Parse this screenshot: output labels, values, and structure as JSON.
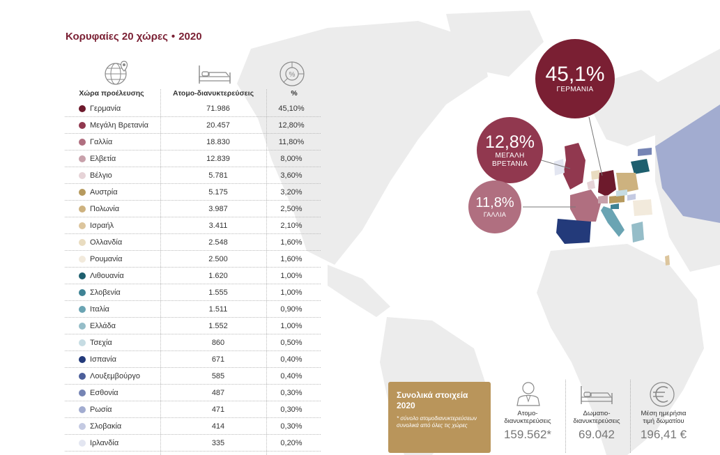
{
  "title": "Κορυφαίες 20 χώρες",
  "year": "2020",
  "separator": "•",
  "columns": {
    "country": "Χώρα προέλευσης",
    "value": "Ατομο-διανυκτερεύσεις",
    "percent": "%"
  },
  "icons": [
    "globe-pin-icon",
    "bed-icon",
    "percent-donut-icon",
    "person-icon",
    "bed-icon",
    "euro-icon"
  ],
  "rows": [
    {
      "country": "Γερμανία",
      "value": "71.986",
      "percent": "45,10%",
      "color": "#6d1a2c"
    },
    {
      "country": "Μεγάλη Βρετανία",
      "value": "20.457",
      "percent": "12,80%",
      "color": "#91384f"
    },
    {
      "country": "Γαλλία",
      "value": "18.830",
      "percent": "11,80%",
      "color": "#b06f80"
    },
    {
      "country": "Ελβετία",
      "value": "12.839",
      "percent": "8,00%",
      "color": "#c8a1ab"
    },
    {
      "country": "Βέλγιο",
      "value": "5.781",
      "percent": "3,60%",
      "color": "#e6d3d7"
    },
    {
      "country": "Αυστρία",
      "value": "5.175",
      "percent": "3,20%",
      "color": "#b69a5e"
    },
    {
      "country": "Πολωνία",
      "value": "3.987",
      "percent": "2,50%",
      "color": "#cdb27f"
    },
    {
      "country": "Ισραήλ",
      "value": "3.411",
      "percent": "2,10%",
      "color": "#dcc59d"
    },
    {
      "country": "Ολλανδία",
      "value": "2.548",
      "percent": "1,60%",
      "color": "#e9dcc0"
    },
    {
      "country": "Ρουμανία",
      "value": "2.500",
      "percent": "1,60%",
      "color": "#f2eadc"
    },
    {
      "country": "Λιθουανία",
      "value": "1.620",
      "percent": "1,00%",
      "color": "#1e5f6e"
    },
    {
      "country": "Σλοβενία",
      "value": "1.555",
      "percent": "1,00%",
      "color": "#3f8395"
    },
    {
      "country": "Ιταλία",
      "value": "1.511",
      "percent": "0,90%",
      "color": "#6aa4b3"
    },
    {
      "country": "Ελλάδα",
      "value": "1.552",
      "percent": "1,00%",
      "color": "#95bdc8"
    },
    {
      "country": "Τσεχία",
      "value": "860",
      "percent": "0,50%",
      "color": "#c6dce3"
    },
    {
      "country": "Ισπανία",
      "value": "671",
      "percent": "0,40%",
      "color": "#233a7a"
    },
    {
      "country": "Λουξεμβούργο",
      "value": "585",
      "percent": "0,40%",
      "color": "#4c5f9a"
    },
    {
      "country": "Εσθονία",
      "value": "487",
      "percent": "0,30%",
      "color": "#7584b4"
    },
    {
      "country": "Ρωσία",
      "value": "471",
      "percent": "0,30%",
      "color": "#a2acd0"
    },
    {
      "country": "Σλοβακία",
      "value": "414",
      "percent": "0,30%",
      "color": "#c4cae2"
    },
    {
      "country": "Ιρλανδία",
      "value": "335",
      "percent": "0,20%",
      "color": "#e3e6f1"
    }
  ],
  "bubbles": [
    {
      "value": "45,1%",
      "label": "ΓΕΡΜΑΝΙΑ",
      "color": "#7a1f33"
    },
    {
      "value": "12,8%",
      "label": "ΜΕΓΑΛΗ ΒΡΕΤΑΝΙΑ",
      "label_line1": "ΜΕΓΑΛΗ",
      "label_line2": "ΒΡΕΤΑΝΙΑ",
      "color": "#91384f"
    },
    {
      "value": "11,8%",
      "label": "ΓΑΛΛΙΑ",
      "color": "#b06f80"
    }
  ],
  "totals": {
    "heading": "Συνολικά στοιχεία 2020",
    "note": "* σύνολο ατομοδιανυκτερεύσεων συνολικά από όλες τις χώρες",
    "color": "#b9955b"
  },
  "stats": [
    {
      "label_line1": "Ατομο-",
      "label_line2": "διανυκτερεύσεις",
      "value": "159.562*"
    },
    {
      "label_line1": "Δωματιο-",
      "label_line2": "διανυκτερεύσεις",
      "value": "69.042"
    },
    {
      "label_line1": "Μέση ημερήσια",
      "label_line2": "τιμή δωματίου",
      "value": "196,41 €"
    }
  ],
  "chart_data": {
    "type": "table",
    "title": "Κορυφαίες 20 χώρες • 2020",
    "columns": [
      "Χώρα προέλευσης",
      "Ατομο-διανυκτερεύσεις",
      "%"
    ],
    "categories": [
      "Γερμανία",
      "Μεγάλη Βρετανία",
      "Γαλλία",
      "Ελβετία",
      "Βέλγιο",
      "Αυστρία",
      "Πολωνία",
      "Ισραήλ",
      "Ολλανδία",
      "Ρουμανία",
      "Λιθουανία",
      "Σλοβενία",
      "Ιταλία",
      "Ελλάδα",
      "Τσεχία",
      "Ισπανία",
      "Λουξεμβούργο",
      "Εσθονία",
      "Ρωσία",
      "Σλοβακία",
      "Ιρλανδία"
    ],
    "series": [
      {
        "name": "Ατομο-διανυκτερεύσεις",
        "values": [
          71986,
          20457,
          18830,
          12839,
          5781,
          5175,
          3987,
          3411,
          2548,
          2500,
          1620,
          1555,
          1511,
          1552,
          860,
          671,
          585,
          487,
          471,
          414,
          335
        ]
      },
      {
        "name": "%",
        "values": [
          45.1,
          12.8,
          11.8,
          8.0,
          3.6,
          3.2,
          2.5,
          2.1,
          1.6,
          1.6,
          1.0,
          1.0,
          0.9,
          1.0,
          0.5,
          0.4,
          0.4,
          0.3,
          0.3,
          0.3,
          0.2
        ]
      }
    ]
  }
}
